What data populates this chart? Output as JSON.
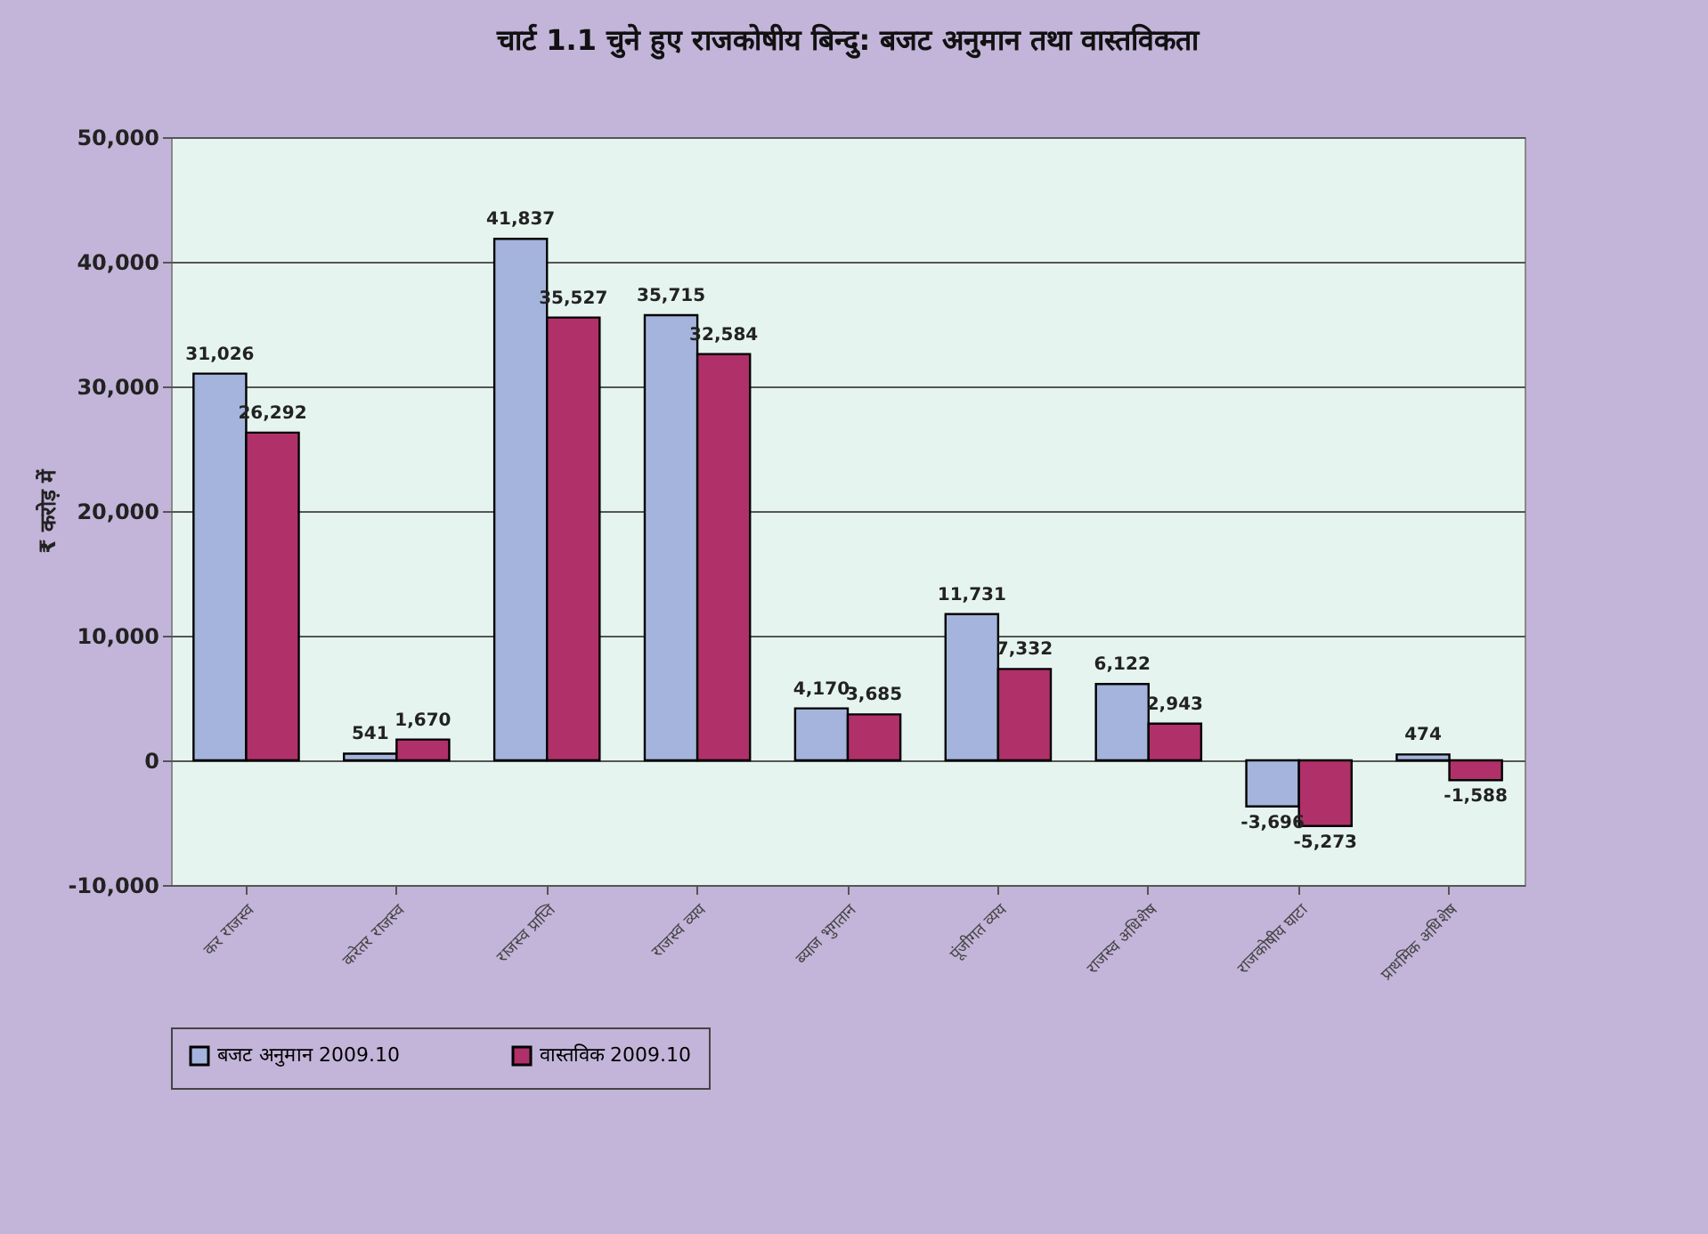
{
  "chart_data": {
    "type": "bar",
    "title": "चार्ट 1.1 चुने हुए राजकोषीय बिन्दु: बजट अनुमान तथा वास्तविकता",
    "ylabel": "₹ करोड़ में",
    "categories": [
      "कर राजस्व",
      "करेतर राजस्व",
      "राजस्व प्राप्ति",
      "राजस्व व्यय",
      "ब्याज भुगतान",
      "पूंजीगत व्यय",
      "राजस्व अधिशेष",
      "राजकोषीय घाटा",
      "प्राथमिक अधिशेष"
    ],
    "series": [
      {
        "name": "बजट अनुमान 2009.10",
        "color": "#a4b4dc",
        "values": [
          31026,
          541,
          41837,
          35715,
          4170,
          11731,
          6122,
          -3696,
          474
        ],
        "value_labels": [
          "31,026",
          "541",
          "41,837",
          "35,715",
          "4,170",
          "11,731",
          "6,122",
          "-3,696",
          "474"
        ]
      },
      {
        "name": "वास्तविक 2009.10",
        "color": "#b0306a",
        "values": [
          26292,
          1670,
          35527,
          32584,
          3685,
          7332,
          2943,
          -5273,
          -1588
        ],
        "value_labels": [
          "26,292",
          "1,670",
          "35,527",
          "32,584",
          "3,685",
          "7,332",
          "2,943",
          "-5,273",
          "-1,588"
        ]
      }
    ],
    "ylim": [
      -10000,
      50000
    ],
    "yticks": [
      {
        "value": -10000,
        "label": "-10,000"
      },
      {
        "value": 0,
        "label": "0"
      },
      {
        "value": 10000,
        "label": "10,000"
      },
      {
        "value": 20000,
        "label": "20,000"
      },
      {
        "value": 30000,
        "label": "30,000"
      },
      {
        "value": 40000,
        "label": "40,000"
      },
      {
        "value": 50000,
        "label": "50,000"
      }
    ],
    "grid": "y",
    "legend": "bottom"
  }
}
